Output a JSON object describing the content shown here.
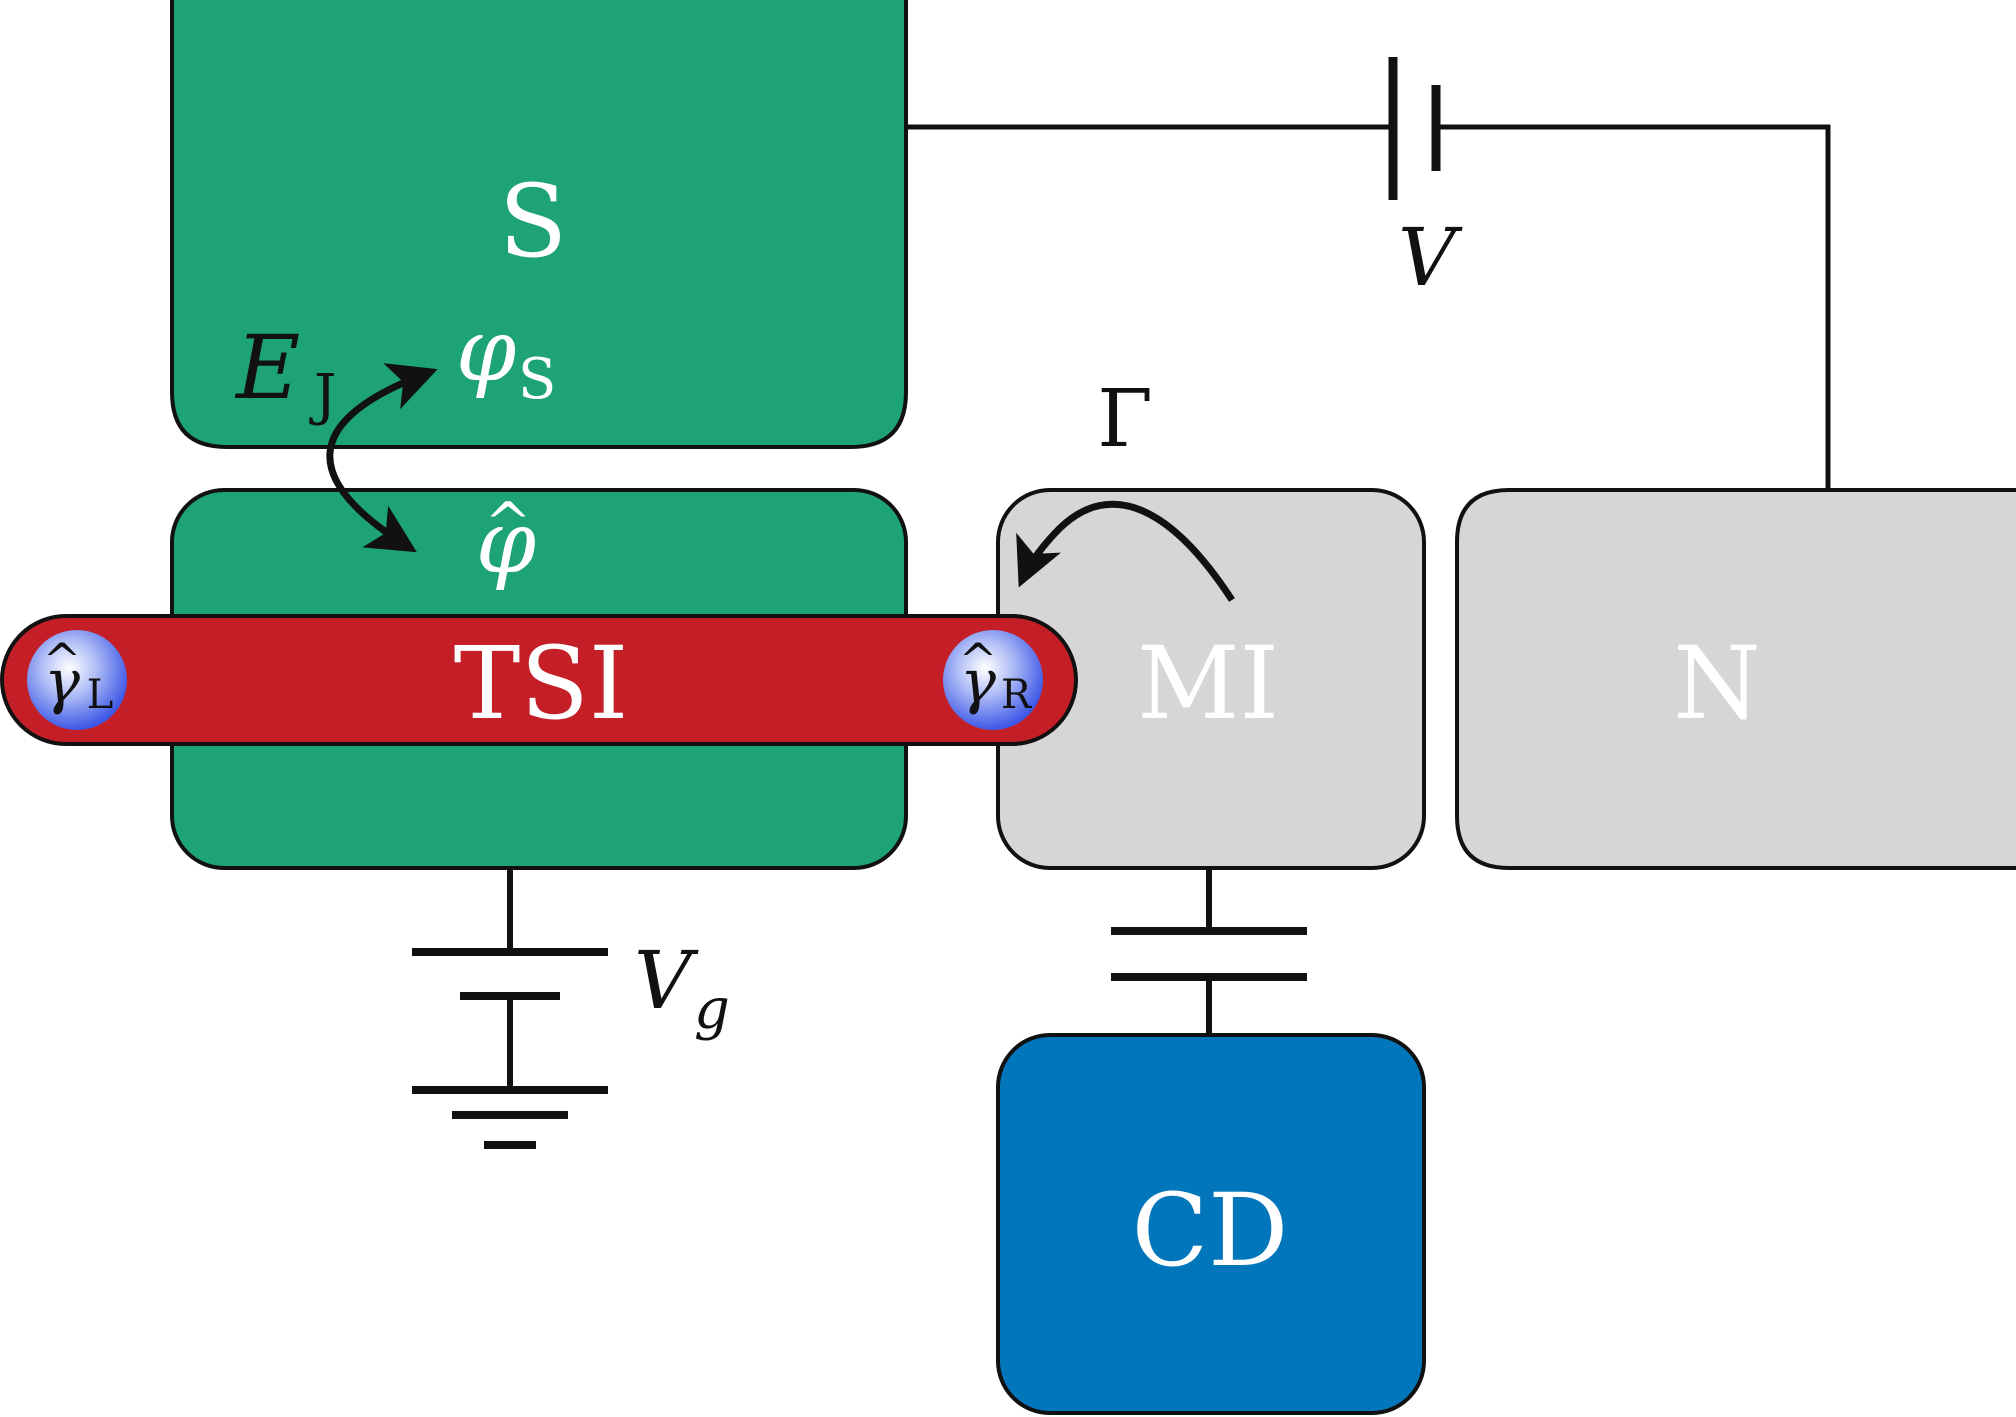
{
  "colors": {
    "superconductor": "#1ea378",
    "tsi": "#c41f27",
    "insulator": "#d6d6d6",
    "detector": "#0276bb",
    "outline": "#111111",
    "label_on_dark": "#ffffff",
    "label_on_light": "#ffffff",
    "majorana_center": "#ffffff",
    "majorana_edge": "#3e58e6"
  },
  "blocks": {
    "s": "S",
    "tsi": "TSI",
    "mi": "MI",
    "n": "N",
    "cd": "CD"
  },
  "symbols": {
    "bias_voltage_v": "V",
    "gate_voltage_v": "V",
    "gate_voltage_sub": "g",
    "josephson_e": "E",
    "josephson_sub": "J",
    "phase_s": "φ",
    "phase_s_sub": "S",
    "phase_operator": "φ",
    "hat": "^",
    "tunneling": "Γ",
    "majorana_left": "γ",
    "majorana_left_sub": "L",
    "majorana_right": "γ",
    "majorana_right_sub": "R"
  },
  "icons": {
    "bias_source": "battery-icon",
    "gate_source": "battery-icon",
    "ground": "ground-icon",
    "capacitor": "capacitor-icon"
  }
}
